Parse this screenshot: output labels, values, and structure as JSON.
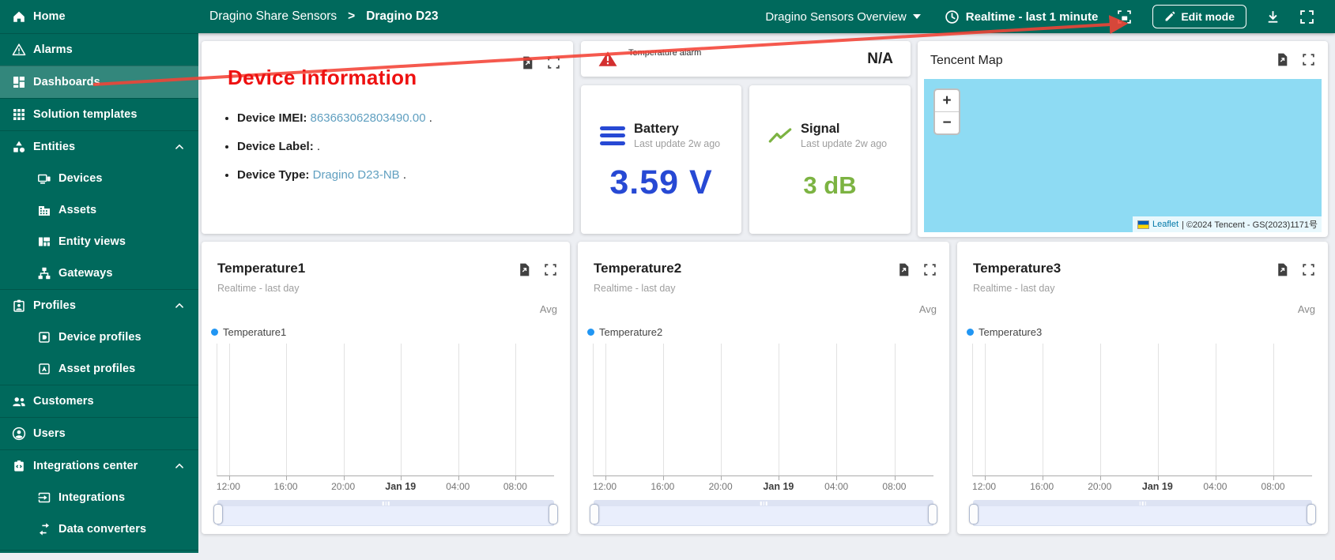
{
  "annotation": {
    "label": "Device information",
    "label_color": "#ee1111",
    "arrow_color": "#f44336"
  },
  "topbar": {
    "breadcrumb": {
      "parent": "Dragino Share Sensors",
      "separator": ">",
      "current": "Dragino D23"
    },
    "dashboard_select": "Dragino Sensors Overview",
    "timewindow": "Realtime - last 1 minute",
    "edit_button": "Edit mode"
  },
  "sidebar": {
    "items": [
      {
        "label": "Home",
        "icon": "home",
        "selected": false,
        "child": false,
        "expandable": false,
        "divider_before": false
      },
      {
        "label": "Alarms",
        "icon": "warning",
        "selected": false,
        "child": false,
        "expandable": false,
        "divider_before": true
      },
      {
        "label": "Dashboards",
        "icon": "dashboards",
        "selected": true,
        "child": false,
        "expandable": false,
        "divider_before": true
      },
      {
        "label": "Solution templates",
        "icon": "grid",
        "selected": false,
        "child": false,
        "expandable": false,
        "divider_before": true
      },
      {
        "label": "Entities",
        "icon": "entities",
        "selected": false,
        "child": false,
        "expandable": true,
        "divider_before": true
      },
      {
        "label": "Devices",
        "icon": "device",
        "selected": false,
        "child": true,
        "expandable": false,
        "divider_before": false
      },
      {
        "label": "Assets",
        "icon": "asset",
        "selected": false,
        "child": true,
        "expandable": false,
        "divider_before": false
      },
      {
        "label": "Entity views",
        "icon": "entity-view",
        "selected": false,
        "child": true,
        "expandable": false,
        "divider_before": false
      },
      {
        "label": "Gateways",
        "icon": "gateway",
        "selected": false,
        "child": true,
        "expandable": false,
        "divider_before": false
      },
      {
        "label": "Profiles",
        "icon": "profiles",
        "selected": false,
        "child": false,
        "expandable": true,
        "divider_before": true
      },
      {
        "label": "Device profiles",
        "icon": "device-profile",
        "selected": false,
        "child": true,
        "expandable": false,
        "divider_before": false
      },
      {
        "label": "Asset profiles",
        "icon": "asset-profile",
        "selected": false,
        "child": true,
        "expandable": false,
        "divider_before": false
      },
      {
        "label": "Customers",
        "icon": "customers",
        "selected": false,
        "child": false,
        "expandable": false,
        "divider_before": true
      },
      {
        "label": "Users",
        "icon": "user",
        "selected": false,
        "child": false,
        "expandable": false,
        "divider_before": true
      },
      {
        "label": "Integrations center",
        "icon": "integrations-center",
        "selected": false,
        "child": false,
        "expandable": true,
        "divider_before": true
      },
      {
        "label": "Integrations",
        "icon": "integration",
        "selected": false,
        "child": true,
        "expandable": false,
        "divider_before": false
      },
      {
        "label": "Data converters",
        "icon": "data-converter",
        "selected": false,
        "child": true,
        "expandable": false,
        "divider_before": false
      }
    ]
  },
  "device_info": {
    "rows": [
      {
        "label": "Device IMEI:",
        "value": "863663062803490.00",
        "suffix": "."
      },
      {
        "label": "Device Label:",
        "value": "",
        "suffix": "."
      },
      {
        "label": "Device Type:",
        "value": "Dragino D23-NB",
        "suffix": "."
      }
    ]
  },
  "alarm": {
    "title": "Temperature alarm",
    "value": "N/A"
  },
  "battery": {
    "title": "Battery",
    "subtitle": "Last update 2w ago",
    "value": "3.59 V"
  },
  "signal": {
    "title": "Signal",
    "subtitle": "Last update 2w ago",
    "value": "3 dB"
  },
  "map": {
    "title": "Tencent Map",
    "zoom_in": "+",
    "zoom_out": "−",
    "attribution_link": "Leaflet",
    "attribution_rest": " | ©2024 Tencent - GS(2023)1171号"
  },
  "charts": [
    {
      "title": "Temperature1",
      "subtitle": "Realtime - last day",
      "aggregation": "Avg",
      "legend": "Temperature1",
      "ticks": [
        "12:00",
        "16:00",
        "20:00",
        "Jan 19",
        "04:00",
        "08:00"
      ],
      "bold_tick": "Jan 19"
    },
    {
      "title": "Temperature2",
      "subtitle": "Realtime - last day",
      "aggregation": "Avg",
      "legend": "Temperature2",
      "ticks": [
        "12:00",
        "16:00",
        "20:00",
        "Jan 19",
        "04:00",
        "08:00"
      ],
      "bold_tick": "Jan 19"
    },
    {
      "title": "Temperature3",
      "subtitle": "Realtime - last day",
      "aggregation": "Avg",
      "legend": "Temperature3",
      "ticks": [
        "12:00",
        "16:00",
        "20:00",
        "Jan 19",
        "04:00",
        "08:00"
      ],
      "bold_tick": "Jan 19"
    }
  ],
  "chart_data": [
    {
      "type": "line",
      "title": "Temperature1",
      "subtitle": "Realtime - last day",
      "aggregation": "Avg",
      "x_ticks": [
        "12:00",
        "16:00",
        "20:00",
        "Jan 19",
        "04:00",
        "08:00"
      ],
      "series": [
        {
          "name": "Temperature1",
          "color": "#2196f3",
          "values": []
        }
      ],
      "grid": true,
      "legend_position": "top-left"
    },
    {
      "type": "line",
      "title": "Temperature2",
      "subtitle": "Realtime - last day",
      "aggregation": "Avg",
      "x_ticks": [
        "12:00",
        "16:00",
        "20:00",
        "Jan 19",
        "04:00",
        "08:00"
      ],
      "series": [
        {
          "name": "Temperature2",
          "color": "#2196f3",
          "values": []
        }
      ],
      "grid": true,
      "legend_position": "top-left"
    },
    {
      "type": "line",
      "title": "Temperature3",
      "subtitle": "Realtime - last day",
      "aggregation": "Avg",
      "x_ticks": [
        "12:00",
        "16:00",
        "20:00",
        "Jan 19",
        "04:00",
        "08:00"
      ],
      "series": [
        {
          "name": "Temperature3",
          "color": "#2196f3",
          "values": []
        }
      ],
      "grid": true,
      "legend_position": "top-left"
    }
  ],
  "colors": {
    "topbar": "#00695c",
    "battery_value": "#2749d4",
    "signal_value": "#7cb342",
    "alarm_red": "#d32f2f",
    "legend_dot": "#2196f3",
    "map_water": "#8edbf3",
    "device_value_link": "#5f9fc0"
  }
}
